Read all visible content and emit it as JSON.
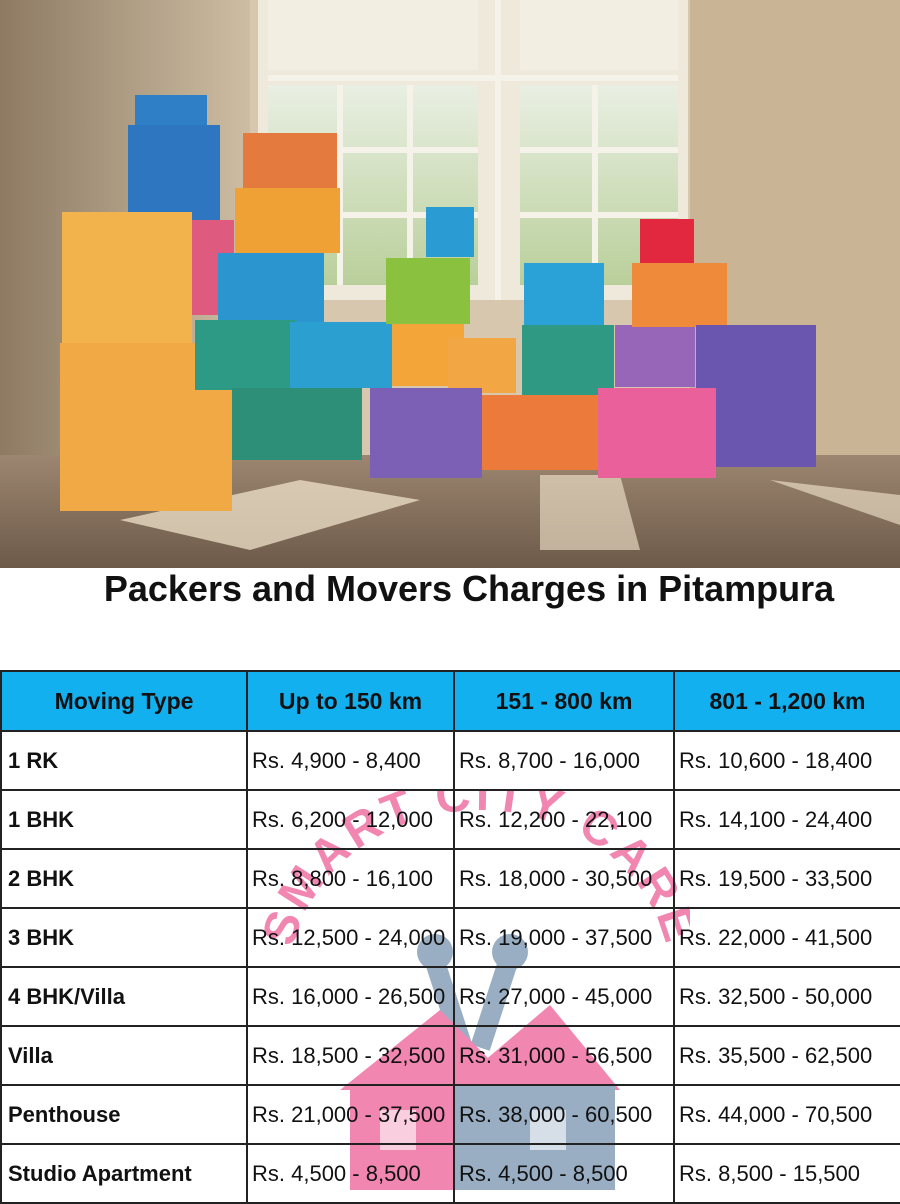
{
  "hero": {
    "image_alt": "Stacked colorful moving boxes in a sunlit room"
  },
  "title": "Packers and Movers Charges in Pitampura",
  "watermark": {
    "text": "SMART CITY CARE"
  },
  "colors": {
    "header_bg": "#13b0f0",
    "watermark": "#f07aa8",
    "wrench": "#8fa6bd"
  },
  "table": {
    "headers": [
      "Moving Type",
      "Up to 150 km",
      "151 - 800 km",
      "801 - 1,200 km"
    ],
    "rows": [
      {
        "type": "1 RK",
        "r1": "Rs. 4,900 - 8,400",
        "r2": "Rs. 8,700 - 16,000",
        "r3": "Rs. 10,600 - 18,400"
      },
      {
        "type": "1 BHK",
        "r1": "Rs. 6,200 - 12,000",
        "r2": "Rs. 12,200 - 22,100",
        "r3": "Rs. 14,100 - 24,400"
      },
      {
        "type": "2 BHK",
        "r1": "Rs. 8,800 - 16,100",
        "r2": "Rs. 18,000 - 30,500",
        "r3": "Rs. 19,500 - 33,500"
      },
      {
        "type": "3 BHK",
        "r1": "Rs. 12,500 - 24,000",
        "r2": "Rs. 19,000 - 37,500",
        "r3": "Rs. 22,000 - 41,500"
      },
      {
        "type": "4 BHK/Villa",
        "r1": "Rs. 16,000 - 26,500",
        "r2": "Rs. 27,000 - 45,000",
        "r3": "Rs. 32,500 - 50,000"
      },
      {
        "type": "Villa",
        "r1": "Rs. 18,500 - 32,500",
        "r2": "Rs. 31,000 - 56,500",
        "r3": "Rs. 35,500 - 62,500"
      },
      {
        "type": "Penthouse",
        "r1": "Rs. 21,000 - 37,500",
        "r2": "Rs. 38,000 - 60,500",
        "r3": "Rs. 44,000 - 70,500"
      },
      {
        "type": "Studio Apartment",
        "r1": "Rs. 4,500 - 8,500",
        "r2": "Rs. 4,500 - 8,500",
        "r3": "Rs. 8,500 - 15,500"
      }
    ]
  }
}
